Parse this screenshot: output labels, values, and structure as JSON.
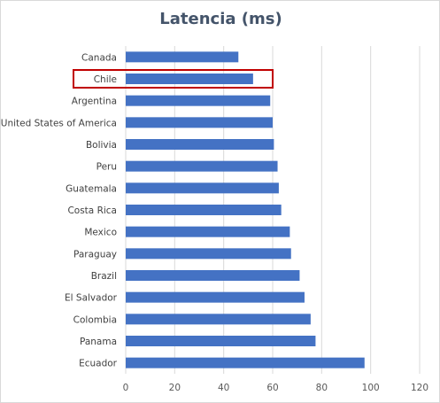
{
  "chart_data": {
    "type": "bar",
    "orientation": "horizontal",
    "title": "Latencia (ms)",
    "xlabel": "",
    "ylabel": "",
    "categories": [
      "Canada",
      "Chile",
      "Argentina",
      "United States of America",
      "Bolivia",
      "Peru",
      "Guatemala",
      "Costa Rica",
      "Mexico",
      "Paraguay",
      "Brazil",
      "El Salvador",
      "Colombia",
      "Panama",
      "Ecuador"
    ],
    "values": [
      46,
      52,
      59,
      60,
      60.5,
      62,
      62.5,
      63.5,
      67,
      67.5,
      71,
      73,
      75.5,
      77.5,
      97.5
    ],
    "xlim": [
      0,
      120
    ],
    "xticks": [
      0,
      20,
      40,
      60,
      80,
      100,
      120
    ],
    "grid": "vertical",
    "legend": "none",
    "highlighted_category": "Chile",
    "bar_color": "#4472c4",
    "highlight_color": "#c00000"
  }
}
